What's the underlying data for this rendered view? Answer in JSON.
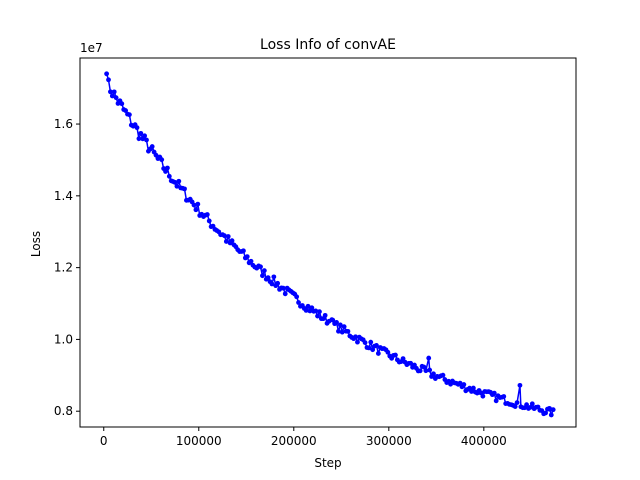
{
  "chart_data": {
    "type": "line",
    "title": "Loss Info of convAE",
    "xlabel": "Step",
    "ylabel": "Loss",
    "y_offset_label": "1e7",
    "y_scale_factor": 10000000,
    "xlim": [
      -25000,
      497000
    ],
    "ylim": [
      7560000,
      17840000
    ],
    "x_ticks": [
      0,
      100000,
      200000,
      300000,
      400000
    ],
    "x_tick_labels": [
      "0",
      "100000",
      "200000",
      "300000",
      "400000"
    ],
    "y_ticks": [
      8000000,
      10000000,
      12000000,
      14000000,
      16000000
    ],
    "y_tick_labels": [
      "0.8",
      "1.0",
      "1.2",
      "1.4",
      "1.6"
    ],
    "grid": false,
    "series": [
      {
        "color": "#0000ff",
        "marker": "circle",
        "x_start": 0,
        "x_step": 2000,
        "n_points": 236,
        "trend": {
          "description": "exponential decay L = a + b*exp(-x/tau)",
          "a": 6400000,
          "b": 10890000,
          "tau": 243000
        },
        "spikes": [
          {
            "x": 240000,
            "y": 10550000
          },
          {
            "x": 342000,
            "y": 9480000
          },
          {
            "x": 438000,
            "y": 8720000
          }
        ],
        "x_end": 470000,
        "y_start": 17400000,
        "y_end": 8050000
      }
    ]
  }
}
